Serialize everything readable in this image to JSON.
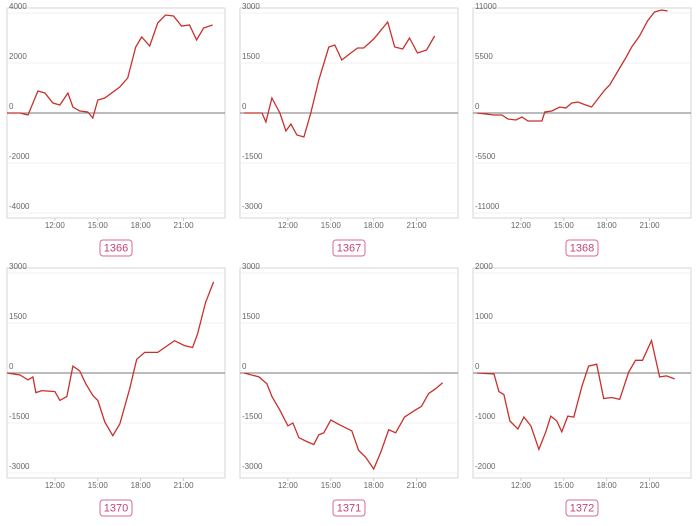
{
  "chart_data": [
    {
      "type": "line",
      "label": "1366",
      "color": "#c8302c",
      "xlim": [
        8.65,
        23.9
      ],
      "ylim": [
        -4200,
        4200
      ],
      "xticks": [
        {
          "value": 12,
          "label": "12:00"
        },
        {
          "value": 15,
          "label": "15:00"
        },
        {
          "value": 18,
          "label": "18:00"
        },
        {
          "value": 21,
          "label": "21:00"
        }
      ],
      "yticks": [
        4000,
        2000,
        0,
        -2000,
        -4000
      ],
      "x": [
        8.65,
        9.56,
        10.12,
        10.81,
        11.3,
        11.86,
        12.35,
        12.91,
        13.26,
        13.74,
        14.3,
        14.65,
        15.0,
        15.49,
        16.54,
        17.09,
        17.65,
        18.07,
        18.63,
        19.19,
        19.74,
        20.3,
        20.86,
        21.42,
        21.91,
        22.4,
        23.03
      ],
      "values": [
        0,
        0,
        -80,
        880,
        800,
        400,
        320,
        800,
        240,
        80,
        40,
        -200,
        520,
        600,
        1040,
        1400,
        2640,
        3040,
        2680,
        3600,
        3920,
        3880,
        3480,
        3520,
        2920,
        3400,
        3520
      ]
    },
    {
      "type": "line",
      "label": "1367",
      "color": "#c8302c",
      "xlim": [
        8.65,
        23.9
      ],
      "ylim": [
        -3150,
        3150
      ],
      "xticks": [
        {
          "value": 12,
          "label": "12:00"
        },
        {
          "value": 15,
          "label": "15:00"
        },
        {
          "value": 18,
          "label": "18:00"
        },
        {
          "value": 21,
          "label": "21:00"
        }
      ],
      "yticks": [
        3000,
        1500,
        0,
        -1500,
        -3000
      ],
      "x": [
        8.93,
        10.19,
        10.46,
        10.88,
        11.44,
        11.86,
        12.21,
        12.63,
        13.12,
        13.6,
        14.16,
        14.86,
        15.28,
        15.77,
        16.4,
        16.88,
        17.3,
        18.0,
        18.98,
        19.47,
        20.03,
        20.51,
        21.07,
        21.7,
        22.26
      ],
      "values": [
        0,
        0,
        -270,
        450,
        0,
        -540,
        -330,
        -660,
        -720,
        0,
        990,
        1980,
        2040,
        1590,
        1800,
        1950,
        1950,
        2220,
        2730,
        1980,
        1920,
        2250,
        1800,
        1890,
        2310
      ]
    },
    {
      "type": "line",
      "label": "1368",
      "color": "#c8302c",
      "xlim": [
        8.65,
        23.9
      ],
      "ylim": [
        -11550,
        11550
      ],
      "xticks": [
        {
          "value": 12,
          "label": "12:00"
        },
        {
          "value": 15,
          "label": "15:00"
        },
        {
          "value": 18,
          "label": "18:00"
        },
        {
          "value": 21,
          "label": "21:00"
        }
      ],
      "yticks": [
        11000,
        5500,
        0,
        -5500,
        -11000
      ],
      "x": [
        8.93,
        10.12,
        10.67,
        11.09,
        11.65,
        12.07,
        12.49,
        12.98,
        13.47,
        13.67,
        14.16,
        14.72,
        15.14,
        15.56,
        15.98,
        16.54,
        16.95,
        17.86,
        18.21,
        18.91,
        19.33,
        19.75,
        20.3,
        20.86,
        21.35,
        21.84,
        22.26
      ],
      "values": [
        0,
        -220,
        -220,
        -660,
        -770,
        -440,
        -880,
        -880,
        -880,
        110,
        220,
        660,
        550,
        1100,
        1210,
        880,
        660,
        2530,
        3080,
        4950,
        6050,
        7260,
        8470,
        10120,
        11110,
        11330,
        11220
      ]
    },
    {
      "type": "line",
      "label": "1370",
      "color": "#c8302c",
      "xlim": [
        8.65,
        23.9
      ],
      "ylim": [
        -3150,
        3150
      ],
      "xticks": [
        {
          "value": 12,
          "label": "12:00"
        },
        {
          "value": 15,
          "label": "15:00"
        },
        {
          "value": 18,
          "label": "18:00"
        },
        {
          "value": 21,
          "label": "21:00"
        }
      ],
      "yticks": [
        3000,
        1500,
        0,
        -1500,
        -3000
      ],
      "x": [
        8.65,
        9.56,
        10.12,
        10.46,
        10.67,
        11.09,
        12.0,
        12.35,
        12.84,
        13.26,
        13.74,
        14.16,
        14.65,
        15.0,
        15.49,
        16.05,
        16.54,
        17.23,
        17.72,
        18.28,
        19.19,
        19.68,
        20.37,
        21.07,
        21.63,
        21.98,
        22.54,
        23.1
      ],
      "values": [
        0,
        -59,
        -206,
        -118,
        -588,
        -529,
        -559,
        -823,
        -706,
        206,
        59,
        -323,
        -676,
        -823,
        -1470,
        -1882,
        -1529,
        -470,
        412,
        617,
        617,
        764,
        970,
        823,
        764,
        1176,
        2117,
        2734
      ]
    },
    {
      "type": "line",
      "label": "1371",
      "color": "#c8302c",
      "xlim": [
        8.65,
        23.9
      ],
      "ylim": [
        -3150,
        3150
      ],
      "xticks": [
        {
          "value": 12,
          "label": "12:00"
        },
        {
          "value": 15,
          "label": "15:00"
        },
        {
          "value": 18,
          "label": "18:00"
        },
        {
          "value": 21,
          "label": "21:00"
        }
      ],
      "yticks": [
        3000,
        1500,
        0,
        -1500,
        -3000
      ],
      "x": [
        8.93,
        9.98,
        10.53,
        10.88,
        11.44,
        12.0,
        12.35,
        12.77,
        13.33,
        13.81,
        14.16,
        14.51,
        15.0,
        15.63,
        16.47,
        16.95,
        17.44,
        18.0,
        18.49,
        19.05,
        19.54,
        20.16,
        20.79,
        21.35,
        21.84,
        22.33,
        22.82
      ],
      "values": [
        0,
        -118,
        -323,
        -706,
        -1117,
        -1588,
        -1500,
        -1941,
        -2058,
        -2146,
        -1853,
        -1794,
        -1411,
        -1558,
        -1735,
        -2323,
        -2528,
        -2881,
        -2381,
        -1705,
        -1794,
        -1323,
        -1147,
        -1000,
        -617,
        -470,
        -294
      ]
    },
    {
      "type": "line",
      "label": "1372",
      "color": "#c8302c",
      "xlim": [
        8.65,
        23.9
      ],
      "ylim": [
        -2100,
        2100
      ],
      "xticks": [
        {
          "value": 12,
          "label": "12:00"
        },
        {
          "value": 15,
          "label": "15:00"
        },
        {
          "value": 18,
          "label": "18:00"
        },
        {
          "value": 21,
          "label": "21:00"
        }
      ],
      "yticks": [
        2000,
        1000,
        0,
        -1000,
        -2000
      ],
      "x": [
        8.93,
        10.12,
        10.46,
        10.81,
        11.23,
        11.79,
        12.21,
        12.7,
        13.26,
        13.74,
        14.09,
        14.51,
        14.86,
        15.28,
        15.7,
        16.26,
        16.74,
        17.3,
        17.79,
        18.35,
        18.91,
        19.54,
        20.02,
        20.51,
        21.14,
        21.7,
        22.19,
        22.75
      ],
      "values": [
        0,
        -20,
        -372,
        -431,
        -960,
        -1117,
        -882,
        -1058,
        -1529,
        -1176,
        -862,
        -960,
        -1176,
        -862,
        -882,
        -274,
        137,
        176,
        -510,
        -490,
        -529,
        20,
        255,
        255,
        647,
        -78,
        -59,
        -118
      ]
    }
  ]
}
